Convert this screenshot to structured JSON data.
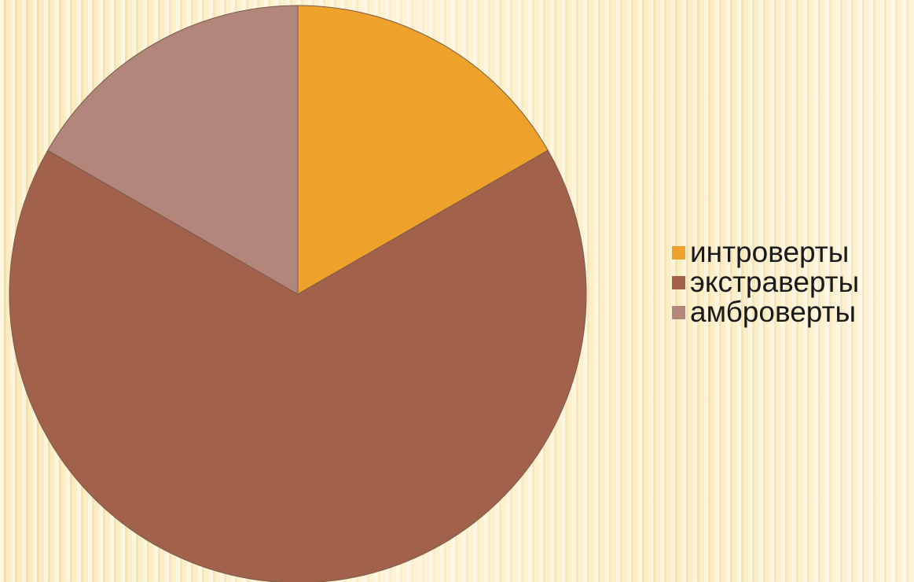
{
  "chart_data": {
    "type": "pie",
    "categories": [
      "интроверты",
      "экстраверты",
      "амброверты"
    ],
    "values": [
      16.7,
      66.6,
      16.7
    ],
    "colors": [
      "#eea22c",
      "#a1614b",
      "#b2867b"
    ],
    "legend_position": "right",
    "title": ""
  }
}
